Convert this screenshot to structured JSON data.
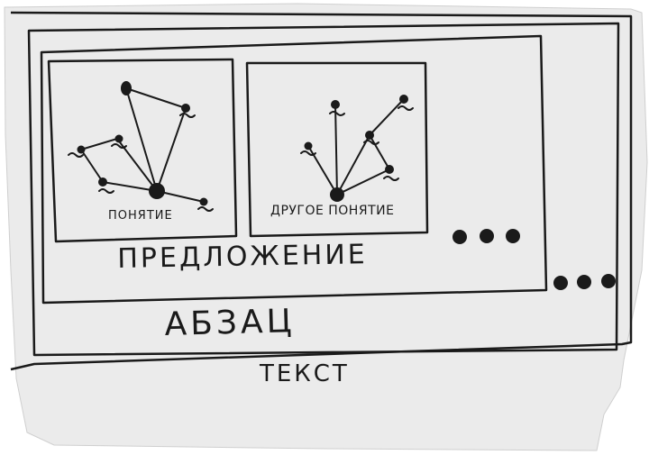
{
  "labels": {
    "text": "ТЕКСТ",
    "paragraph": "АБЗАЦ",
    "sentence": "ПРЕДЛОЖЕНИЕ",
    "concept_1": "ПОНЯТИЕ",
    "concept_2": "ДРУГОЕ ПОНЯТИЕ"
  },
  "hierarchy": [
    "ТЕКСТ",
    "АБЗАЦ",
    "ПРЕДЛОЖЕНИЕ",
    "ПОНЯТИЕ"
  ],
  "concept_graphs": [
    {
      "label": "ПОНЯТИЕ",
      "center_node": "c",
      "nodes": [
        "c",
        "n1",
        "n2",
        "n3",
        "n4",
        "n5",
        "n6"
      ],
      "edges": [
        [
          "c",
          "n1"
        ],
        [
          "c",
          "n2"
        ],
        [
          "c",
          "n4"
        ],
        [
          "c",
          "n5"
        ],
        [
          "c",
          "n6"
        ],
        [
          "n1",
          "n2"
        ],
        [
          "n3",
          "n4"
        ],
        [
          "n3",
          "n6"
        ]
      ]
    },
    {
      "label": "ДРУГОЕ ПОНЯТИЕ",
      "center_node": "c",
      "nodes": [
        "c",
        "m1",
        "m2",
        "m3",
        "m4",
        "m5"
      ],
      "edges": [
        [
          "c",
          "m1"
        ],
        [
          "c",
          "m2"
        ],
        [
          "c",
          "m3"
        ],
        [
          "c",
          "m4"
        ],
        [
          "m3",
          "m5"
        ]
      ]
    }
  ],
  "continuation_dots": {
    "sentence_level": 3,
    "paragraph_level": 3
  },
  "colors": {
    "paper": "#ebebeb",
    "ink": "#1a1a1a",
    "background": "#ffffff"
  }
}
